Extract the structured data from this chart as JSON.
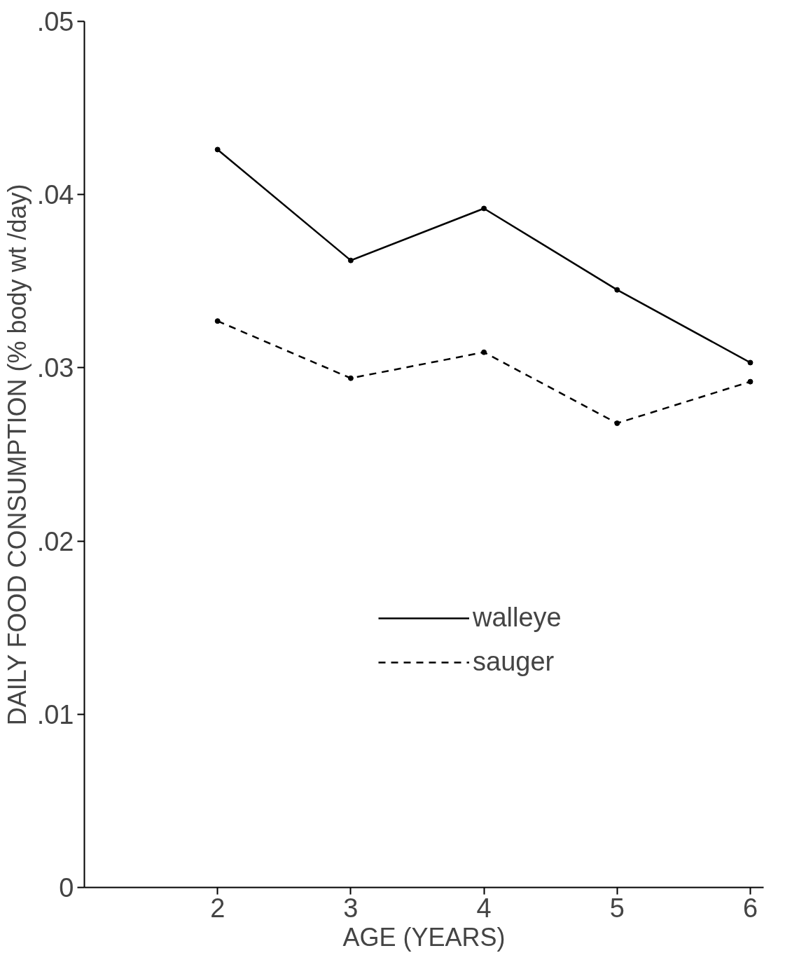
{
  "chart_data": {
    "type": "line",
    "xlabel": "AGE (YEARS)",
    "ylabel": "DAILY FOOD CONSUMPTION (% body wt /day)",
    "x": [
      2,
      3,
      4,
      5,
      6
    ],
    "series": [
      {
        "name": "walleye",
        "color": "#000000",
        "line_style": "solid",
        "values": [
          0.0426,
          0.0362,
          0.0392,
          0.0345,
          0.0303
        ]
      },
      {
        "name": "sauger",
        "color": "#000000",
        "line_style": "dashed",
        "values": [
          0.0327,
          0.0294,
          0.0309,
          0.0268,
          0.0292
        ]
      }
    ],
    "xlim": [
      1,
      6.1
    ],
    "ylim": [
      0,
      0.05
    ],
    "xticks": [
      2,
      3,
      4,
      5,
      6
    ],
    "yticks": [
      0,
      {
        "value": 0.01,
        "label": ".01"
      },
      {
        "value": 0.02,
        "label": ".02"
      },
      {
        "value": 0.03,
        "label": ".03"
      },
      {
        "value": 0.04,
        "label": ".04"
      },
      {
        "value": 0.05,
        "label": ".05"
      }
    ],
    "grid": false,
    "legend": "center right",
    "marker": "circle"
  }
}
